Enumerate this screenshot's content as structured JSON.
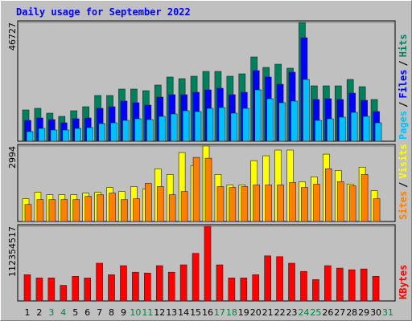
{
  "title": "Daily usage for September 2022",
  "categories": [
    "1",
    "2",
    "3",
    "4",
    "5",
    "6",
    "7",
    "8",
    "9",
    "10",
    "11",
    "12",
    "13",
    "14",
    "15",
    "16",
    "17",
    "18",
    "19",
    "20",
    "21",
    "22",
    "23",
    "24",
    "25",
    "26",
    "27",
    "28",
    "29",
    "30",
    "31"
  ],
  "weekend_categories": [
    "3",
    "4",
    "10",
    "11",
    "17",
    "18",
    "24",
    "25",
    "31"
  ],
  "weekend_color": "#008040",
  "legend_separator": "/",
  "chart_data": [
    {
      "type": "bar",
      "ylim": [
        0,
        46727
      ],
      "yticks": [
        46727
      ],
      "series": [
        {
          "name": "Hits",
          "color": "#00805c",
          "values": [
            12313,
            12944,
            11050,
            9787,
            11997,
            13575,
            17995,
            17995,
            20521,
            20521,
            19890,
            22099,
            25256,
            24625,
            25572,
            27466,
            27466,
            25572,
            26519,
            33149,
            29044,
            30307,
            28729,
            46727,
            21783,
            21783,
            21783,
            24309,
            21468,
            16416,
            0
          ]
        },
        {
          "name": "Files",
          "color": "#0000ff",
          "values": [
            8208,
            9155,
            8524,
            7261,
            8840,
            9155,
            12944,
            13575,
            15785,
            15154,
            14207,
            17364,
            18311,
            18311,
            19258,
            20205,
            20836,
            18311,
            19258,
            27782,
            25256,
            22415,
            27150,
            40725,
            16416,
            16732,
            16416,
            18942,
            16101,
            11681,
            0
          ]
        },
        {
          "name": "Pages",
          "color": "#00c0ff",
          "values": [
            3788,
            5051,
            4420,
            4420,
            5051,
            5367,
            6945,
            7261,
            8208,
            8840,
            8524,
            9787,
            10734,
            11997,
            11681,
            12944,
            13259,
            11050,
            12944,
            20205,
            16732,
            15154,
            15785,
            24309,
            8208,
            8840,
            9471,
            11365,
            9787,
            7261,
            0
          ]
        }
      ]
    },
    {
      "type": "bar",
      "ylim": [
        0,
        2994
      ],
      "yticks": [
        2994
      ],
      "series": [
        {
          "name": "Visits",
          "color": "#ffff00",
          "values": [
            902,
            1159,
            1063,
            1063,
            1063,
            1127,
            1159,
            1352,
            1191,
            1385,
            1288,
            2093,
            1868,
            2737,
            2222,
            2994,
            1868,
            1449,
            1449,
            2415,
            2608,
            2834,
            2834,
            1578,
            1771,
            2673,
            2029,
            1481,
            2157,
            1224,
            0
          ]
        },
        {
          "name": "Sites",
          "color": "#ff8000",
          "values": [
            676,
            869,
            869,
            869,
            869,
            998,
            1063,
            1127,
            869,
            902,
            1513,
            1385,
            1063,
            1191,
            2544,
            2512,
            1385,
            1352,
            1385,
            1449,
            1449,
            1449,
            1546,
            1352,
            1481,
            2093,
            1578,
            1417,
            1868,
            902,
            0
          ]
        }
      ]
    },
    {
      "type": "bar",
      "ylim": [
        0,
        112354517
      ],
      "yticks": [
        112354517
      ],
      "series": [
        {
          "name": "KBytes",
          "color": "#ff0000",
          "values": [
            39509000,
            34571000,
            34571000,
            23459000,
            37040000,
            34571000,
            56795000,
            39509000,
            53091000,
            43213000,
            41979000,
            53091000,
            43213000,
            54325000,
            71611000,
            112354517,
            54325000,
            34571000,
            34571000,
            39509000,
            67906000,
            66672000,
            56795000,
            44448000,
            32101000,
            53091000,
            49387000,
            46917000,
            48152000,
            37040000,
            0
          ]
        }
      ]
    }
  ]
}
